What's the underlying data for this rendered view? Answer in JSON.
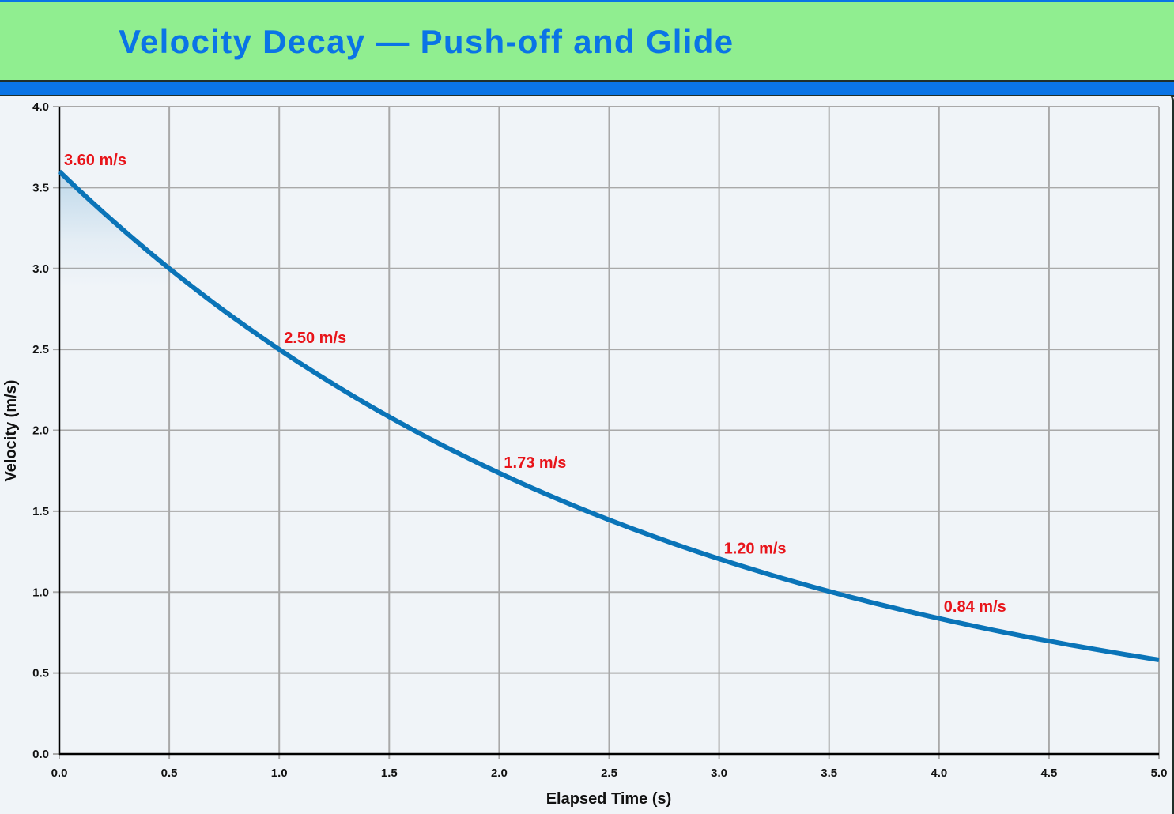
{
  "header": {
    "title": "Velocity Decay — Push-off and Glide"
  },
  "colors": {
    "header_bg": "#90ee90",
    "title_color": "#0a74e6",
    "accent_bar": "#0a74e6",
    "line_color": "#0a74b8",
    "label_color": "#e8141a",
    "grid_color": "#a9a9a9",
    "plot_bg": "#f0f4f8"
  },
  "axes": {
    "x_title": "Elapsed Time (s)",
    "y_title": "Velocity (m/s)",
    "x_ticks": [
      "0.0",
      "0.5",
      "1.0",
      "1.5",
      "2.0",
      "2.5",
      "3.0",
      "3.5",
      "4.0",
      "4.5",
      "5.0"
    ],
    "y_ticks": [
      "0.0",
      "0.5",
      "1.0",
      "1.5",
      "2.0",
      "2.5",
      "3.0",
      "3.5",
      "4.0"
    ]
  },
  "annotations": [
    {
      "text": "3.60 m/s",
      "t": 0,
      "v": 3.6
    },
    {
      "text": "2.50 m/s",
      "t": 1,
      "v": 2.5
    },
    {
      "text": "1.73 m/s",
      "t": 2,
      "v": 1.73
    },
    {
      "text": "1.20 m/s",
      "t": 3,
      "v": 1.2
    },
    {
      "text": "0.84 m/s",
      "t": 4,
      "v": 0.84
    }
  ],
  "chart_data": {
    "type": "line",
    "title": "Velocity Decay — Push-off and Glide",
    "xlabel": "Elapsed Time (s)",
    "ylabel": "Velocity (m/s)",
    "xlim": [
      0,
      5
    ],
    "ylim": [
      0,
      4
    ],
    "grid": true,
    "legend": null,
    "series": [
      {
        "name": "Velocity",
        "x": [
          0.0,
          0.5,
          1.0,
          1.5,
          2.0,
          2.5,
          3.0,
          3.5,
          4.0,
          4.5,
          5.0
        ],
        "values": [
          3.6,
          3.0,
          2.5,
          2.08,
          1.73,
          1.45,
          1.2,
          1.0,
          0.84,
          0.7,
          0.58
        ]
      }
    ],
    "annotations": [
      "3.60 m/s",
      "2.50 m/s",
      "1.73 m/s",
      "1.20 m/s",
      "0.84 m/s"
    ]
  }
}
